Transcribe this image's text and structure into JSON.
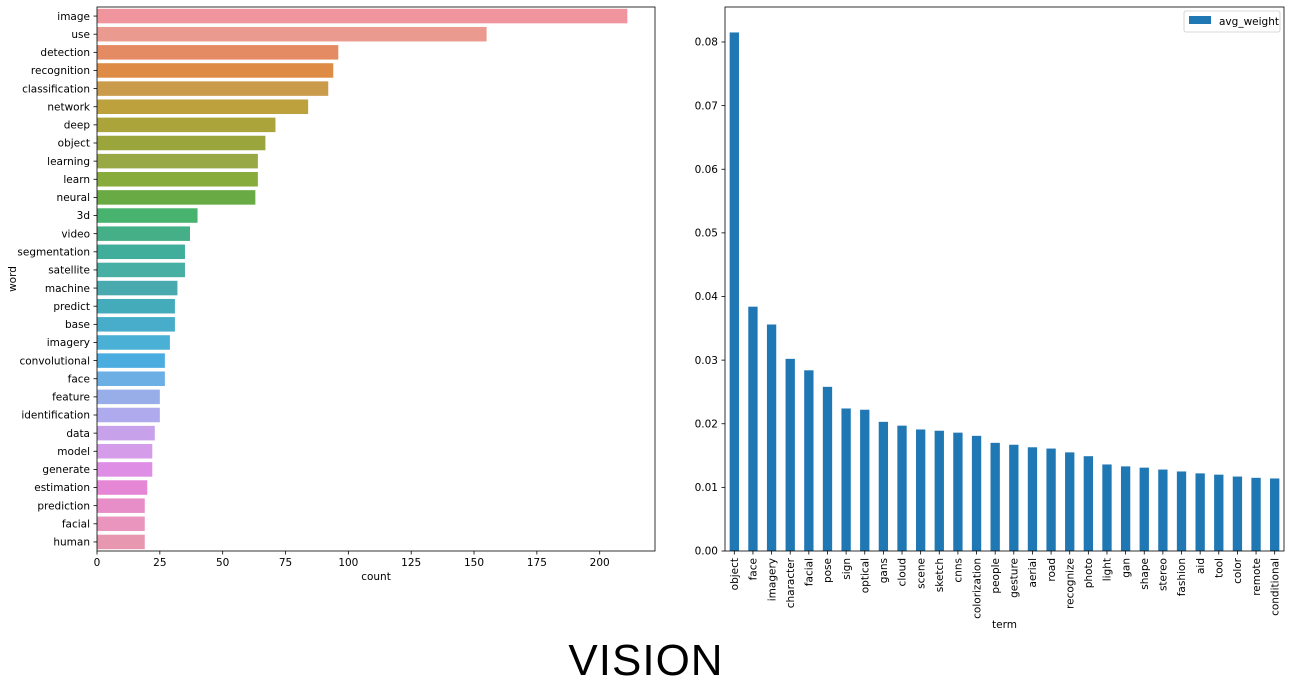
{
  "caption": "VISION",
  "chart_data": [
    {
      "type": "bar",
      "orientation": "horizontal",
      "xlabel": "count",
      "ylabel": "word",
      "xlim": [
        0,
        222
      ],
      "xticks": [
        0,
        25,
        50,
        75,
        100,
        125,
        150,
        175,
        200
      ],
      "grid": false,
      "categories": [
        "image",
        "use",
        "detection",
        "recognition",
        "classification",
        "network",
        "deep",
        "object",
        "learning",
        "learn",
        "neural",
        "3d",
        "video",
        "segmentation",
        "satellite",
        "machine",
        "predict",
        "base",
        "imagery",
        "convolutional",
        "face",
        "feature",
        "identification",
        "data",
        "model",
        "generate",
        "estimation",
        "prediction",
        "facial",
        "human"
      ],
      "values": [
        211,
        155,
        96,
        94,
        92,
        84,
        71,
        67,
        64,
        64,
        63,
        40,
        37,
        35,
        35,
        32,
        31,
        31,
        29,
        27,
        27,
        25,
        25,
        23,
        22,
        22,
        20,
        19,
        19,
        19
      ],
      "colors": [
        "#f0949d",
        "#eb9a8f",
        "#e58b63",
        "#de8c45",
        "#cb9b4c",
        "#bca13d",
        "#aba43b",
        "#9aa63b",
        "#97a845",
        "#87ac3b",
        "#6aaa45",
        "#47b36e",
        "#45b087",
        "#41ae9b",
        "#48afa5",
        "#48aaae",
        "#44abba",
        "#48adca",
        "#4ab0d6",
        "#4bacdf",
        "#6bafe5",
        "#98aee9",
        "#aeaaed",
        "#c7a2ea",
        "#d49ce9",
        "#df8ee6",
        "#e687d6",
        "#e78dc7",
        "#e995bd",
        "#e897b1"
      ]
    },
    {
      "type": "bar",
      "orientation": "vertical",
      "legend": [
        "avg_weight"
      ],
      "legend_position": "top-right",
      "xlabel": "term",
      "ylabel": "",
      "ylim": [
        0,
        0.0855
      ],
      "yticks": [
        "0.00",
        "0.01",
        "0.02",
        "0.03",
        "0.04",
        "0.05",
        "0.06",
        "0.07",
        "0.08"
      ],
      "grid": false,
      "color": "#1f77b4",
      "categories": [
        "object",
        "face",
        "imagery",
        "character",
        "facial",
        "pose",
        "sign",
        "optical",
        "gans",
        "cloud",
        "scene",
        "sketch",
        "cnns",
        "colorization",
        "people",
        "gesture",
        "aerial",
        "road",
        "recognize",
        "photo",
        "light",
        "gan",
        "shape",
        "stereo",
        "fashion",
        "aid",
        "tool",
        "color",
        "remote",
        "conditional"
      ],
      "values": [
        0.0815,
        0.0384,
        0.0356,
        0.0302,
        0.0284,
        0.0258,
        0.0224,
        0.0222,
        0.0203,
        0.0197,
        0.0191,
        0.0189,
        0.0186,
        0.0181,
        0.017,
        0.0167,
        0.0163,
        0.0161,
        0.0155,
        0.0149,
        0.0136,
        0.0133,
        0.0131,
        0.0128,
        0.0125,
        0.0122,
        0.012,
        0.0117,
        0.0115,
        0.0114
      ]
    }
  ]
}
